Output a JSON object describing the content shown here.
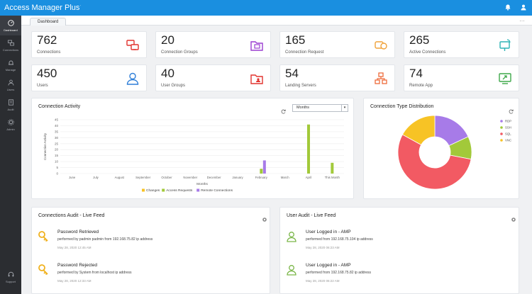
{
  "app": {
    "name": "Access Manager Plus",
    "mark": "·"
  },
  "sidebar": {
    "items": [
      {
        "label": "Dashboard",
        "icon": "dashboard-icon"
      },
      {
        "label": "Connections",
        "icon": "connections-icon"
      },
      {
        "label": "Manage",
        "icon": "manage-icon"
      },
      {
        "label": "Users",
        "icon": "users-icon"
      },
      {
        "label": "Audit",
        "icon": "audit-icon"
      },
      {
        "label": "Admin",
        "icon": "admin-icon"
      }
    ],
    "support": "Support"
  },
  "tabs": {
    "dashboard": "Dashboard",
    "more": "…"
  },
  "stats": [
    {
      "value": "762",
      "label": "Connections",
      "color": "#e2342f",
      "icon": "connections-icon"
    },
    {
      "value": "20",
      "label": "Connection Groups",
      "color": "#9b3fd1",
      "icon": "folder-screen-icon"
    },
    {
      "value": "165",
      "label": "Connection Request",
      "color": "#f0a23a",
      "icon": "request-icon"
    },
    {
      "value": "265",
      "label": "Active Connections",
      "color": "#2db3b5",
      "icon": "active-connection-icon"
    },
    {
      "value": "450",
      "label": "Users",
      "color": "#2f7fd8",
      "icon": "user-icon"
    },
    {
      "value": "40",
      "label": "User Groups",
      "color": "#e2342f",
      "icon": "user-group-folder-icon"
    },
    {
      "value": "54",
      "label": "Landing Servers",
      "color": "#ef6b3a",
      "icon": "landing-server-icon"
    },
    {
      "value": "74",
      "label": "Remote App",
      "color": "#3ea84a",
      "icon": "remote-app-icon"
    }
  ],
  "activity": {
    "title": "Connection Activity",
    "period": "Months",
    "refresh_icon": "refresh-icon"
  },
  "distribution": {
    "title": "Connection Type Distribution",
    "refresh_icon": "refresh-icon"
  },
  "chart_data": [
    {
      "type": "bar",
      "title": "Connection Activity",
      "xlabel": "Months",
      "ylabel": "Connection Activity",
      "categories": [
        "June",
        "July",
        "August",
        "September",
        "October",
        "November",
        "December",
        "January",
        "February",
        "March",
        "April",
        "This Month"
      ],
      "ylim": [
        0,
        45
      ],
      "yticks": [
        0,
        5,
        10,
        15,
        20,
        25,
        30,
        35,
        40,
        45
      ],
      "legend": "bottom",
      "series": [
        {
          "name": "Changes",
          "color": "#f7c325",
          "values": [
            0,
            0,
            0,
            0,
            0,
            0,
            0,
            0,
            0,
            0,
            0,
            0
          ]
        },
        {
          "name": "Access Requests",
          "color": "#a2c93a",
          "values": [
            0,
            0,
            0,
            0,
            0,
            0,
            0,
            0,
            4,
            0,
            41,
            9
          ]
        },
        {
          "name": "Remote Connections",
          "color": "#a77be8",
          "values": [
            0,
            0,
            0,
            0,
            0,
            0,
            0,
            0,
            11,
            0,
            0,
            0
          ]
        }
      ]
    },
    {
      "type": "pie",
      "title": "Connection Type Distribution",
      "legend": "right",
      "labels": [
        "RDP",
        "SSH",
        "SQL",
        "VNC"
      ],
      "values": [
        18,
        10,
        55,
        17
      ],
      "colors": [
        "#a77be8",
        "#a2c93a",
        "#f25a63",
        "#f7c325"
      ]
    }
  ],
  "feeds": {
    "connections": {
      "title": "Connections Audit - Live Feed",
      "items": [
        {
          "title": "Password Retrieved",
          "desc": "performed by padmin padmin from 192.168.75.82 ip address",
          "time": "May 28, 2020 12:45 AM",
          "icon": "key-icon"
        },
        {
          "title": "Password Rejected",
          "desc": "performed by System from localhost ip address",
          "time": "May 28, 2020 12:33 AM",
          "icon": "key-icon"
        }
      ]
    },
    "users": {
      "title": "User Audit - Live Feed",
      "items": [
        {
          "title": "User Logged in - AMP",
          "desc": "performed from 192.168.75.104 ip address",
          "time": "May 28, 2020 06:23 AM",
          "icon": "user-icon"
        },
        {
          "title": "User Logged in - AMP",
          "desc": "performed from 192.168.75.82 ip address",
          "time": "May 28, 2020 06:22 AM",
          "icon": "user-icon"
        }
      ]
    },
    "settings_icon": "gear-icon"
  },
  "colors": {
    "topbar": "#1a8fe0",
    "sidebar": "#2b2d31",
    "key": "#f0b11d",
    "user_outline": "#7ab648"
  }
}
